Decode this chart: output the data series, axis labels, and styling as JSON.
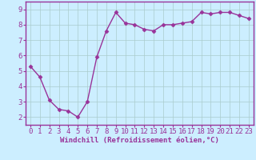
{
  "x": [
    0,
    1,
    2,
    3,
    4,
    5,
    6,
    7,
    8,
    9,
    10,
    11,
    12,
    13,
    14,
    15,
    16,
    17,
    18,
    19,
    20,
    21,
    22,
    23
  ],
  "y": [
    5.3,
    4.6,
    3.1,
    2.5,
    2.4,
    2.0,
    3.0,
    5.9,
    7.6,
    8.8,
    8.1,
    8.0,
    7.7,
    7.6,
    8.0,
    8.0,
    8.1,
    8.2,
    8.8,
    8.7,
    8.8,
    8.8,
    8.6,
    8.4
  ],
  "line_color": "#993399",
  "marker": "D",
  "marker_size": 2.5,
  "bg_color": "#cceeff",
  "grid_color": "#aacccc",
  "xlabel": "Windchill (Refroidissement éolien,°C)",
  "tick_color": "#993399",
  "label_color": "#993399",
  "xlabel_fontsize": 6.5,
  "ylabel_ticks": [
    2,
    3,
    4,
    5,
    6,
    7,
    8,
    9
  ],
  "xlim": [
    -0.5,
    23.5
  ],
  "ylim": [
    1.5,
    9.5
  ],
  "tick_fontsize": 6.5,
  "spine_color": "#993399",
  "linewidth": 1.0
}
